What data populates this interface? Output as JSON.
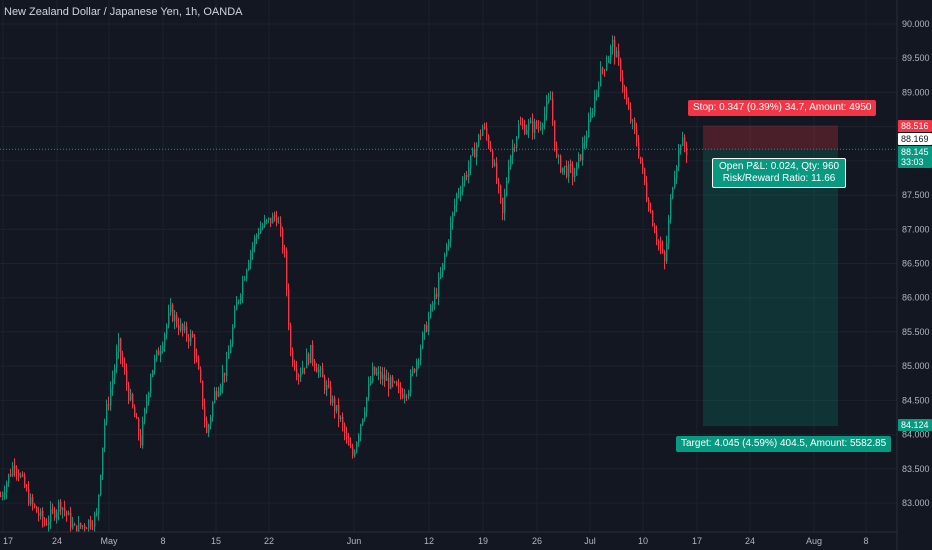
{
  "header": {
    "title": "New Zealand Dollar / Japanese Yen, 1h, OANDA"
  },
  "colors": {
    "background": "#131722",
    "up": "#089981",
    "down": "#f23645",
    "text": "#b2b5be",
    "grid": "#1e222d"
  },
  "position": {
    "stop_label": "Stop: 0.347 (0.39%) 34.7, Amount: 4950",
    "target_label": "Target: 4.045 (4.59%) 404.5, Amount: 5582.85",
    "pnl_line1": "Open P&L: 0.024, Qty: 960",
    "pnl_line2": "Risk/Reward Ratio: 11.66",
    "entry": 88.169,
    "stop": 88.516,
    "target": 84.124
  },
  "price_scale": {
    "stop_tag": "88.516",
    "last_tag": "88.169",
    "current_tag": "88.145",
    "countdown": "33:03",
    "target_tag": "84.124"
  },
  "chart_data": {
    "type": "candlestick",
    "title": "New Zealand Dollar / Japanese Yen, 1h, OANDA",
    "x_ticks": [
      "17",
      "24",
      "May",
      "8",
      "15",
      "22",
      "Jun",
      "12",
      "19",
      "26",
      "Jul",
      "10",
      "17",
      "24",
      "Aug",
      "8"
    ],
    "y_ticks": [
      "90.000",
      "89.500",
      "89.000",
      "88.500",
      "88.000",
      "87.500",
      "87.000",
      "86.500",
      "86.000",
      "85.500",
      "85.000",
      "84.500",
      "84.000",
      "83.500",
      "83.000"
    ],
    "ylim": [
      82.6,
      90.2
    ],
    "price_path": [
      [
        "17",
        83.1
      ],
      [
        "20",
        83.6
      ],
      [
        "21",
        83.3
      ],
      [
        "22",
        83.0
      ],
      [
        "24",
        82.7
      ],
      [
        "25",
        83.0
      ],
      [
        "27",
        82.6
      ],
      [
        "May",
        82.8
      ],
      [
        "2",
        84.2
      ],
      [
        "3",
        85.3
      ],
      [
        "4",
        84.6
      ],
      [
        "5",
        83.9
      ],
      [
        "7",
        84.9
      ],
      [
        "8",
        85.3
      ],
      [
        "9",
        85.8
      ],
      [
        "11",
        85.5
      ],
      [
        "12",
        85.4
      ],
      [
        "13",
        84.7
      ],
      [
        "15",
        84.0
      ],
      [
        "16",
        84.6
      ],
      [
        "17",
        85.0
      ],
      [
        "18",
        85.9
      ],
      [
        "19",
        86.6
      ],
      [
        "20",
        87.0
      ],
      [
        "22",
        87.2
      ],
      [
        "23",
        86.6
      ],
      [
        "24",
        85.2
      ],
      [
        "25",
        84.9
      ],
      [
        "26",
        85.2
      ],
      [
        "28",
        84.6
      ],
      [
        "29",
        84.2
      ],
      [
        "30",
        83.8
      ],
      [
        "31",
        83.7
      ],
      [
        "Jun",
        84.3
      ],
      [
        "2",
        84.9
      ],
      [
        "5",
        84.8
      ],
      [
        "7",
        84.6
      ],
      [
        "8",
        84.7
      ],
      [
        "12",
        85.5
      ],
      [
        "14",
        86.3
      ],
      [
        "15",
        87.5
      ],
      [
        "16",
        87.9
      ],
      [
        "19",
        88.5
      ],
      [
        "20",
        88.2
      ],
      [
        "21",
        87.7
      ],
      [
        "22",
        87.2
      ],
      [
        "23",
        88.0
      ],
      [
        "24",
        88.5
      ],
      [
        "26",
        88.5
      ],
      [
        "27",
        88.9
      ],
      [
        "28",
        88.0
      ],
      [
        "29",
        87.9
      ],
      [
        "30",
        87.8
      ],
      [
        "Jul",
        88.5
      ],
      [
        "3",
        89.2
      ],
      [
        "5",
        89.7
      ],
      [
        "6",
        89.3
      ],
      [
        "7",
        88.8
      ],
      [
        "9",
        88.3
      ],
      [
        "10",
        87.5
      ],
      [
        "11",
        86.9
      ],
      [
        "12",
        86.5
      ],
      [
        "13",
        87.7
      ],
      [
        "14",
        88.3
      ],
      [
        "15",
        88.15
      ]
    ]
  }
}
